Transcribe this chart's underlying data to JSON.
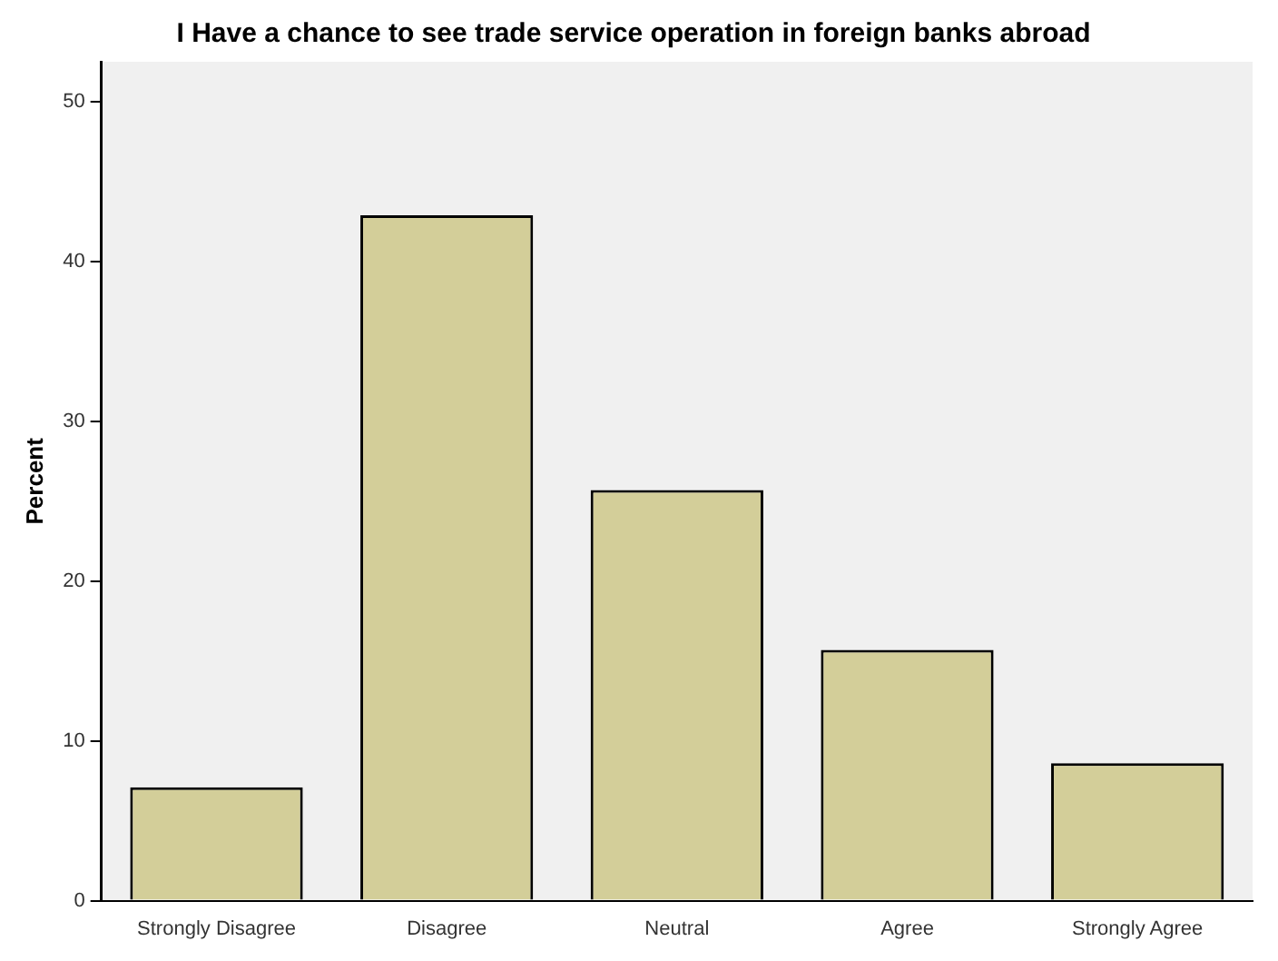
{
  "chart_data": {
    "type": "bar",
    "title": "I Have a chance to see trade service operation in foreign banks abroad",
    "ylabel": "Percent",
    "categories": [
      "Strongly Disagree",
      "Disagree",
      "Neutral",
      "Agree",
      "Strongly Agree"
    ],
    "values": [
      7.1,
      42.9,
      25.7,
      15.7,
      8.6
    ],
    "color": "#d3ce99",
    "ylim": [
      0,
      52.5
    ],
    "yticks": [
      0,
      10,
      20,
      30,
      40,
      50
    ],
    "grid": false,
    "legend": false
  }
}
